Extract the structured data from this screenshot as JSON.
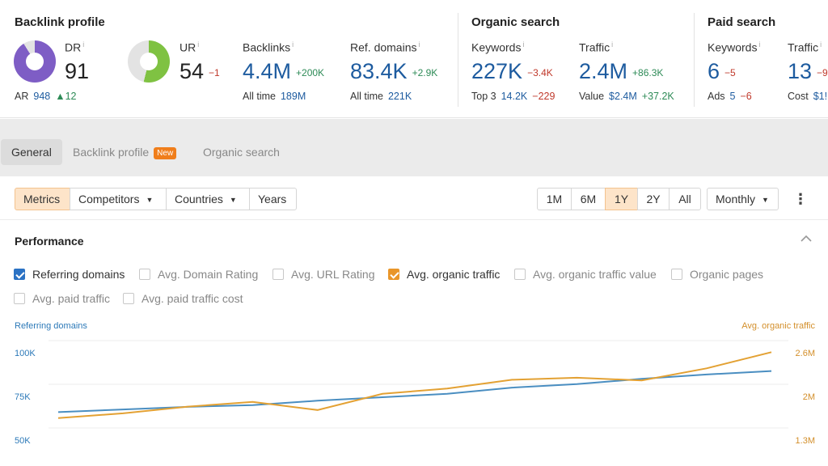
{
  "backlink_profile": {
    "title": "Backlink profile",
    "dr": {
      "label": "DR",
      "info": "i",
      "value": "91",
      "ring_fraction": 0.91,
      "ring_color": "#7e5dc5"
    },
    "ar": {
      "label": "AR",
      "value": "948",
      "delta": "▲12"
    },
    "ur": {
      "label": "UR",
      "info": "i",
      "value": "54",
      "delta": "−1",
      "ring_fraction": 0.54,
      "ring_color": "#7fc242"
    },
    "backlinks": {
      "label": "Backlinks",
      "info": "i",
      "value": "4.4M",
      "delta": "+200K",
      "sub_label": "All time",
      "sub_value": "189M"
    },
    "ref_domains": {
      "label": "Ref. domains",
      "info": "i",
      "value": "83.4K",
      "delta": "+2.9K",
      "sub_label": "All time",
      "sub_value": "221K"
    }
  },
  "organic_search": {
    "title": "Organic search",
    "keywords": {
      "label": "Keywords",
      "info": "i",
      "value": "227K",
      "delta": "−3.4K",
      "sub_label": "Top 3",
      "sub_value": "14.2K",
      "sub_delta": "−229"
    },
    "traffic": {
      "label": "Traffic",
      "info": "i",
      "value": "2.4M",
      "delta": "+86.3K",
      "sub_label": "Value",
      "sub_value": "$2.4M",
      "sub_delta": "+37.2K"
    }
  },
  "paid_search": {
    "title": "Paid search",
    "keywords": {
      "label": "Keywords",
      "info": "i",
      "value": "6",
      "delta": "−5",
      "sub_label": "Ads",
      "sub_value": "5",
      "sub_delta": "−6"
    },
    "traffic": {
      "label": "Traffic",
      "info": "i",
      "value": "13",
      "delta": "−9",
      "sub_label": "Cost",
      "sub_value": "$1!"
    }
  },
  "tabs": [
    {
      "label": "General"
    },
    {
      "label": "Backlink profile",
      "badge": "New"
    },
    {
      "label": "Organic search"
    }
  ],
  "toolbar": {
    "metrics": "Metrics",
    "competitors": "Competitors",
    "countries": "Countries",
    "years": "Years",
    "ranges": [
      "1M",
      "6M",
      "1Y",
      "2Y",
      "All"
    ],
    "selected_range": "1Y",
    "interval": "Monthly",
    "more": "⋮"
  },
  "performance": {
    "title": "Performance",
    "collapse": "^",
    "checkboxes": [
      {
        "label": "Referring domains",
        "checked": true
      },
      {
        "label": "Avg. Domain Rating",
        "checked": false
      },
      {
        "label": "Avg. URL Rating",
        "checked": false
      },
      {
        "label": "Avg. organic traffic",
        "checked": true
      },
      {
        "label": "Avg. organic traffic value",
        "checked": false
      },
      {
        "label": "Organic pages",
        "checked": false
      },
      {
        "label": "Avg. paid traffic",
        "checked": false
      },
      {
        "label": "Avg. paid traffic cost",
        "checked": false
      }
    ]
  },
  "chart_data": {
    "type": "line",
    "left_axis_title": "Referring domains",
    "right_axis_title": "Avg. organic traffic",
    "left_ticks": [
      "100K",
      "75K",
      "50K"
    ],
    "right_ticks": [
      "2.6M",
      "2M",
      "1.3M"
    ],
    "left_range": [
      50000,
      100000
    ],
    "right_range": [
      1300000,
      2600000
    ],
    "grid": true,
    "series": [
      {
        "name": "Referring domains",
        "axis": "left",
        "color": "#4a8ec1",
        "values": [
          66500,
          68000,
          69500,
          70500,
          73000,
          75000,
          77000,
          80500,
          82500,
          85500,
          88000,
          90000
        ]
      },
      {
        "name": "Avg. organic traffic",
        "axis": "right",
        "color": "#e3a133",
        "values": [
          1640000,
          1710000,
          1810000,
          1880000,
          1760000,
          2000000,
          2080000,
          2210000,
          2240000,
          2200000,
          2380000,
          2620000
        ]
      }
    ]
  }
}
